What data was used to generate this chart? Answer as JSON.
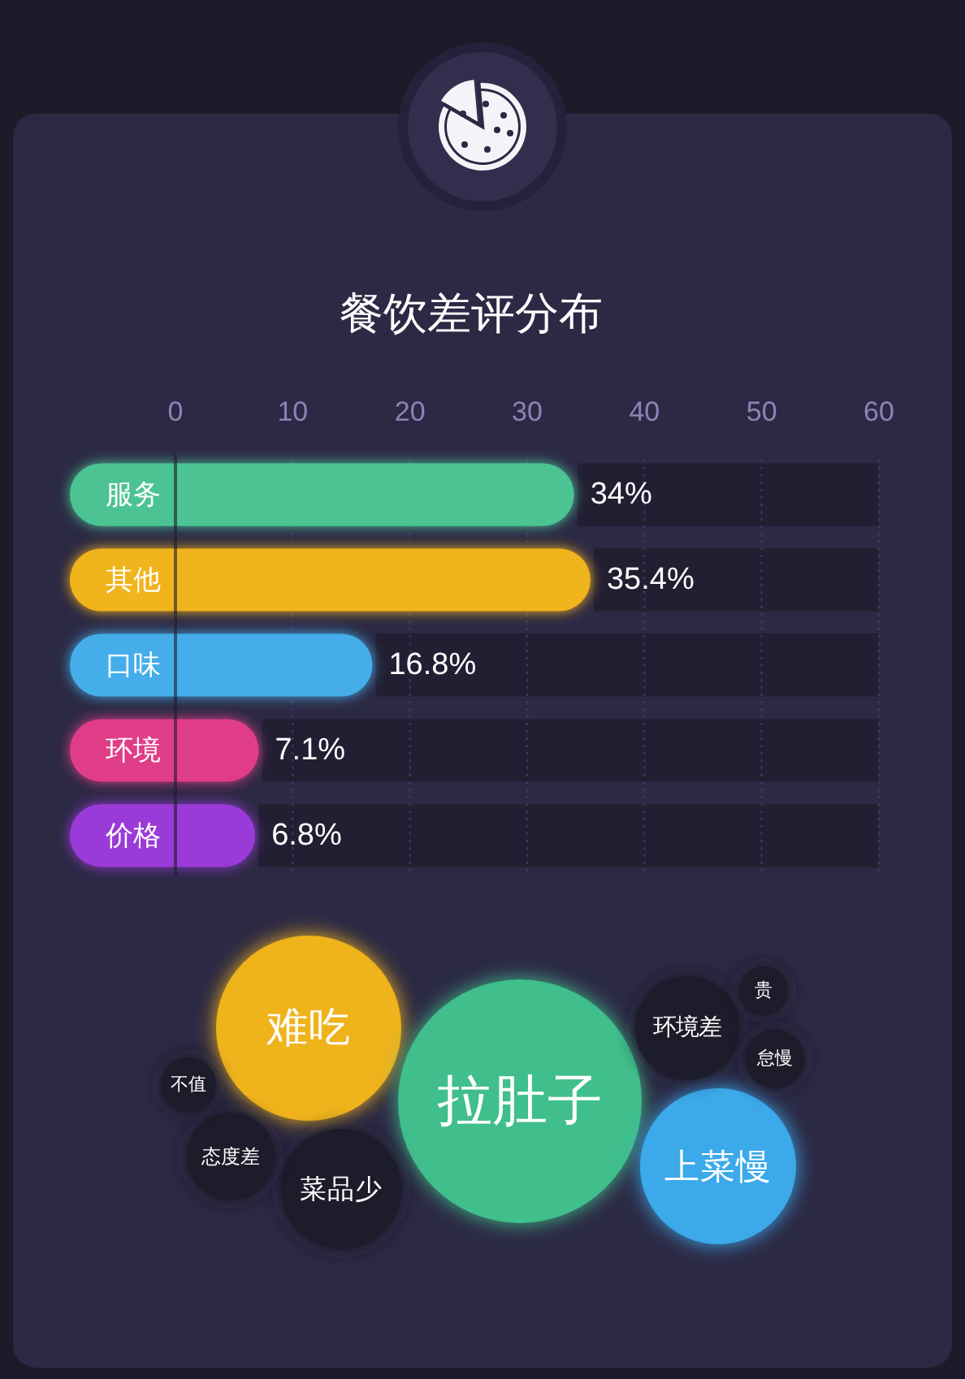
{
  "chart_data": [
    {
      "type": "bar",
      "title": "餐饮差评分布",
      "orientation": "horizontal",
      "categories": [
        "服务",
        "其他",
        "口味",
        "环境",
        "价格"
      ],
      "values": [
        34,
        35.4,
        16.8,
        7.1,
        6.8
      ],
      "colors": [
        "#4cc393",
        "#f0b41d",
        "#45aeea",
        "#e03c88",
        "#9a3bd9"
      ],
      "value_labels": [
        "34%",
        "35.4%",
        "16.8%",
        "7.1%",
        "6.8%"
      ],
      "xlim": [
        0,
        60
      ],
      "xticks": [
        0,
        10,
        20,
        30,
        40,
        50,
        60
      ],
      "grid": "x"
    },
    {
      "type": "other",
      "categories": [
        "难吃",
        "拉肚子",
        "上菜慢",
        "菜品少",
        "环境差",
        "态度差",
        "怠慢",
        "不值",
        "贵"
      ],
      "colors": [
        "#efb31b",
        "#41be8b",
        "#3aa9ea",
        "#1c1a29",
        "#1c1a29",
        "#1c1a29",
        "#1c1a29",
        "#1c1a29",
        "#1c1a29"
      ]
    }
  ]
}
